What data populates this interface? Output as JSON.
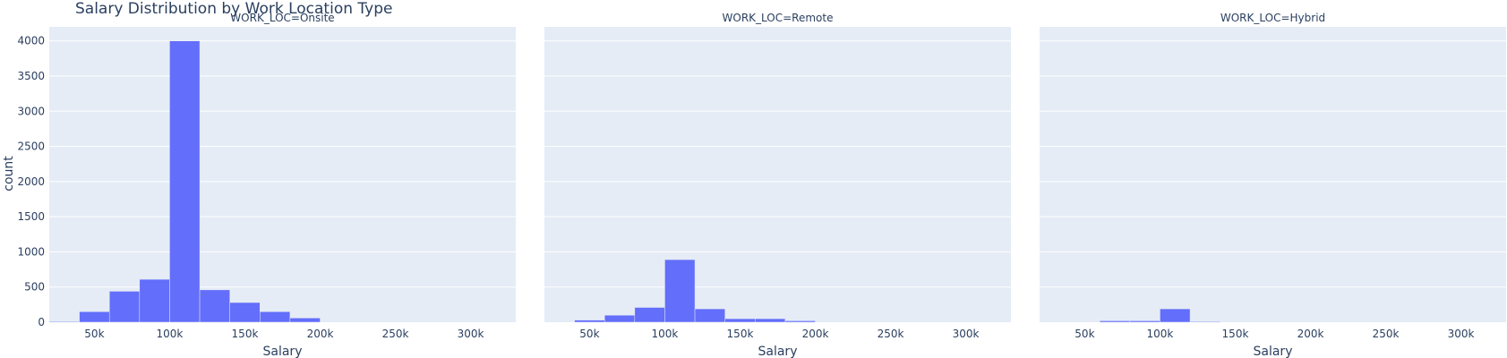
{
  "chart_data": {
    "type": "bar",
    "title": "Salary Distribution by Work Location Type",
    "xlabel": "Salary",
    "ylabel": "count",
    "xlim": [
      20000,
      330000
    ],
    "ylim": [
      0,
      4200
    ],
    "x_ticks": [
      50000,
      100000,
      150000,
      200000,
      250000,
      300000
    ],
    "x_tick_labels": [
      "50k",
      "100k",
      "150k",
      "200k",
      "250k",
      "300k"
    ],
    "y_ticks": [
      0,
      500,
      1000,
      1500,
      2000,
      2500,
      3000,
      3500,
      4000
    ],
    "y_tick_labels": [
      "0",
      "500",
      "1000",
      "1500",
      "2000",
      "2500",
      "3000",
      "3500",
      "4000"
    ],
    "grid": true,
    "bar_color": "#636efa",
    "plot_bg": "#e5ecf6",
    "bin_edges": [
      20000,
      40000,
      60000,
      80000,
      100000,
      120000,
      140000,
      160000,
      180000,
      200000,
      220000,
      240000,
      260000,
      280000,
      300000,
      320000
    ],
    "facets": [
      {
        "title": "WORK_LOC=Onsite",
        "values": [
          10,
          150,
          440,
          610,
          4000,
          460,
          280,
          150,
          60,
          0,
          0,
          0,
          0,
          0,
          0
        ]
      },
      {
        "title": "WORK_LOC=Remote",
        "values": [
          0,
          30,
          100,
          210,
          890,
          190,
          50,
          50,
          20,
          0,
          0,
          0,
          0,
          0,
          0
        ]
      },
      {
        "title": "WORK_LOC=Hybrid",
        "values": [
          0,
          0,
          20,
          20,
          190,
          10,
          0,
          0,
          0,
          0,
          0,
          0,
          0,
          0,
          0
        ]
      }
    ]
  }
}
